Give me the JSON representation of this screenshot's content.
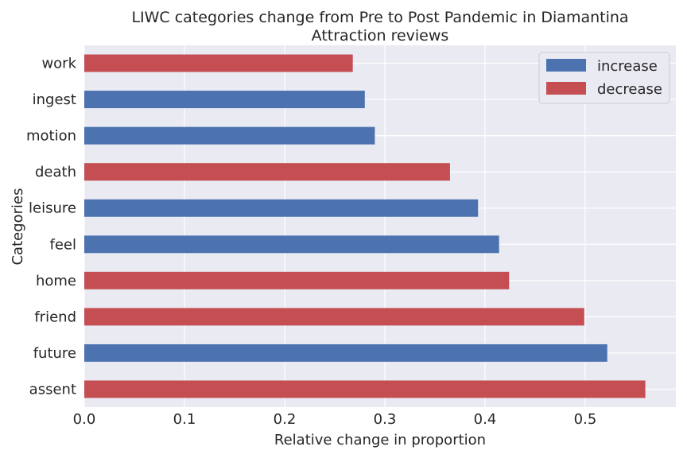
{
  "chart_data": {
    "type": "bar",
    "orientation": "horizontal",
    "title": "LIWC categories change from Pre to Post Pandemic in Diamantina Attraction reviews",
    "title_lines": [
      "LIWC categories change from Pre to Post Pandemic in Diamantina",
      "Attraction reviews"
    ],
    "xlabel": "Relative change in proportion",
    "ylabel": "Categories",
    "xlim": [
      0,
      0.59
    ],
    "xticks": [
      0.0,
      0.1,
      0.2,
      0.3,
      0.4,
      0.5
    ],
    "xtick_labels": [
      "0.0",
      "0.1",
      "0.2",
      "0.3",
      "0.4",
      "0.5"
    ],
    "grid": true,
    "legend_position": "top-right",
    "legend": [
      {
        "label": "increase",
        "color": "#4c72b0"
      },
      {
        "label": "decrease",
        "color": "#c44e52"
      }
    ],
    "categories": [
      "work",
      "ingest",
      "motion",
      "death",
      "leisure",
      "feel",
      "home",
      "friend",
      "future",
      "assent"
    ],
    "values": [
      0.268,
      0.28,
      0.29,
      0.365,
      0.393,
      0.414,
      0.424,
      0.499,
      0.522,
      0.56
    ],
    "direction": [
      "decrease",
      "increase",
      "increase",
      "decrease",
      "increase",
      "increase",
      "decrease",
      "decrease",
      "increase",
      "decrease"
    ]
  }
}
